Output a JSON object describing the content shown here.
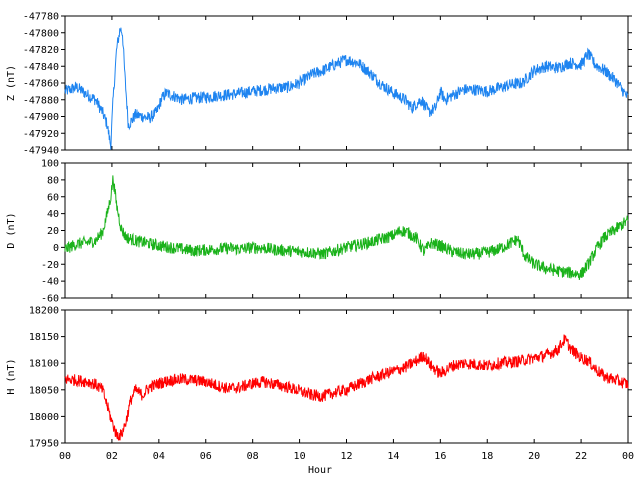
{
  "chart_data": [
    {
      "type": "line",
      "ylabel": "Z (nT)",
      "ylim": [
        -47940,
        -47780
      ],
      "yticks": [
        -47780,
        -47800,
        -47820,
        -47840,
        -47860,
        -47880,
        -47900,
        -47920,
        -47940
      ],
      "xlim": [
        0,
        24
      ],
      "color": "#1e84f0",
      "series": [
        {
          "x": [
            0,
            0.5,
            1,
            1.3,
            1.6,
            1.8,
            1.95,
            2.05,
            2.2,
            2.35,
            2.45,
            2.55,
            2.7,
            2.85,
            3.0,
            3.3,
            3.6,
            3.9,
            4.1,
            4.3,
            4.6,
            5.0,
            5.5,
            6,
            6.5,
            7,
            7.5,
            8,
            8.5,
            9,
            9.5,
            10,
            10.5,
            11,
            11.5,
            12,
            12.5,
            13,
            13.5,
            14,
            14.5,
            14.8,
            15.0,
            15.2,
            15.5,
            15.8,
            16.0,
            16.2,
            16.5,
            17,
            17.5,
            18,
            18.5,
            19,
            19.5,
            20,
            20.5,
            21,
            21.5,
            22,
            22.3,
            22.6,
            23,
            23.5,
            24
          ],
          "y": [
            -47870,
            -47865,
            -47875,
            -47880,
            -47895,
            -47910,
            -47935,
            -47880,
            -47820,
            -47795,
            -47800,
            -47850,
            -47910,
            -47905,
            -47898,
            -47900,
            -47902,
            -47895,
            -47880,
            -47872,
            -47875,
            -47880,
            -47878,
            -47877,
            -47875,
            -47874,
            -47872,
            -47870,
            -47868,
            -47866,
            -47865,
            -47860,
            -47850,
            -47845,
            -47838,
            -47832,
            -47836,
            -47848,
            -47862,
            -47872,
            -47880,
            -47890,
            -47884,
            -47880,
            -47895,
            -47890,
            -47870,
            -47880,
            -47875,
            -47868,
            -47868,
            -47870,
            -47866,
            -47862,
            -47860,
            -47845,
            -47840,
            -47842,
            -47836,
            -47838,
            -47825,
            -47838,
            -47845,
            -47858,
            -47878
          ]
        }
      ]
    },
    {
      "type": "line",
      "ylabel": "D (nT)",
      "ylim": [
        -60,
        100
      ],
      "yticks": [
        100,
        80,
        60,
        40,
        20,
        0,
        -20,
        -40,
        -60
      ],
      "xlim": [
        0,
        24
      ],
      "color": "#1ab21a",
      "series": [
        {
          "x": [
            0,
            0.5,
            1,
            1.3,
            1.6,
            1.8,
            1.95,
            2.05,
            2.2,
            2.4,
            2.6,
            3.0,
            3.5,
            4,
            4.5,
            5,
            5.5,
            6,
            6.5,
            7,
            7.5,
            8,
            8.5,
            9,
            9.5,
            10,
            10.5,
            11,
            11.5,
            12,
            12.5,
            13,
            13.5,
            14,
            14.3,
            14.6,
            15,
            15.3,
            15.6,
            16,
            16.5,
            17,
            17.5,
            18,
            18.5,
            19,
            19.3,
            19.6,
            20,
            20.5,
            21,
            21.5,
            22,
            22.3,
            22.7,
            23,
            23.5,
            24
          ],
          "y": [
            -2,
            4,
            6,
            8,
            18,
            40,
            60,
            82,
            50,
            22,
            12,
            8,
            5,
            2,
            0,
            -2,
            -4,
            -3,
            -2,
            -1,
            -2,
            0,
            -1,
            -3,
            -4,
            -5,
            -6,
            -8,
            -4,
            0,
            3,
            6,
            10,
            14,
            20,
            18,
            10,
            -5,
            5,
            2,
            -5,
            -8,
            -8,
            -6,
            -2,
            5,
            10,
            -10,
            -20,
            -25,
            -28,
            -30,
            -32,
            -20,
            0,
            12,
            22,
            32
          ]
        }
      ]
    },
    {
      "type": "line",
      "ylabel": "H (nT)",
      "ylim": [
        17950,
        18200
      ],
      "yticks": [
        18200,
        18150,
        18100,
        18050,
        18000,
        17950
      ],
      "xlim": [
        0,
        24
      ],
      "xticks": [
        "00",
        "02",
        "04",
        "06",
        "08",
        "10",
        "12",
        "14",
        "16",
        "18",
        "20",
        "22",
        "00"
      ],
      "xlabel": "Hour",
      "color": "#ff0000",
      "series": [
        {
          "x": [
            0,
            0.5,
            1,
            1.3,
            1.6,
            1.8,
            2.0,
            2.2,
            2.4,
            2.6,
            2.8,
            3.0,
            3.3,
            3.6,
            4,
            4.5,
            5,
            5.5,
            6,
            6.5,
            7,
            7.5,
            8,
            8.5,
            9,
            9.5,
            10,
            10.5,
            11,
            11.5,
            12,
            12.5,
            13,
            13.5,
            14,
            14.5,
            15,
            15.3,
            15.6,
            16,
            16.5,
            17,
            17.5,
            18,
            18.5,
            19,
            19.5,
            20,
            20.5,
            21,
            21.3,
            21.6,
            22,
            22.3,
            22.6,
            23,
            23.5,
            24
          ],
          "y": [
            18070,
            18068,
            18065,
            18060,
            18050,
            18020,
            17990,
            17965,
            17965,
            17990,
            18030,
            18050,
            18040,
            18055,
            18062,
            18068,
            18070,
            18068,
            18065,
            18058,
            18052,
            18055,
            18062,
            18065,
            18060,
            18055,
            18048,
            18040,
            18038,
            18045,
            18050,
            18060,
            18070,
            18078,
            18085,
            18092,
            18105,
            18115,
            18095,
            18080,
            18095,
            18100,
            18098,
            18095,
            18100,
            18102,
            18105,
            18110,
            18115,
            18125,
            18145,
            18125,
            18110,
            18105,
            18090,
            18075,
            18068,
            18060
          ]
        }
      ]
    }
  ]
}
